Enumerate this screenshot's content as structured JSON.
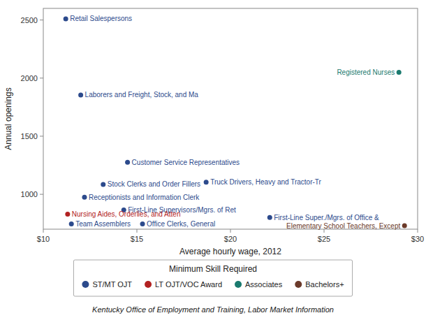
{
  "chart_data": {
    "type": "scatter",
    "xlabel": "Average hourly wage, 2012",
    "ylabel": "Annual openings",
    "caption": "Kentucky Office of Employment and Training, Labor Market Information",
    "xlim": [
      10,
      30
    ],
    "ylim": [
      700,
      2600
    ],
    "xticks": [
      {
        "value": 10,
        "label": "$10"
      },
      {
        "value": 15,
        "label": "$15"
      },
      {
        "value": 20,
        "label": "$20"
      },
      {
        "value": 25,
        "label": "$25"
      },
      {
        "value": 30,
        "label": "$30"
      }
    ],
    "yticks": [
      1000,
      1500,
      2000,
      2500
    ],
    "grid": false,
    "legend": "bottom",
    "legend_title": "Minimum Skill Required",
    "series": [
      {
        "name": "ST/MT OJT",
        "color": "#2C4A8C",
        "x": [
          11.2,
          12.0,
          14.5,
          13.2,
          18.7,
          12.2,
          14.3,
          11.5,
          15.3,
          22.1
        ],
        "values": [
          2510,
          1855,
          1275,
          1085,
          1105,
          975,
          865,
          745,
          745,
          800
        ],
        "labels": [
          "Retail Salespersons",
          "Laborers and Freight, Stock, and Ma",
          "Customer Service Representatives",
          "Stock Clerks and Order Fillers",
          "Truck Drivers, Heavy and Tractor-Tr",
          "Receptionists and Information Clerk",
          "First-Line Supervisors/Mgrs. of Ret",
          "Team Assemblers",
          "Office Clerks, General",
          "First-Line Super./Mgrs. of Office &"
        ]
      },
      {
        "name": "LT OJT/VOC Award",
        "color": "#B22222",
        "x": [
          11.3
        ],
        "values": [
          830
        ],
        "labels": [
          "Nursing Aides, Orderlies, and Atten"
        ]
      },
      {
        "name": "Associates",
        "color": "#1A7A6E",
        "x": [
          29.0
        ],
        "values": [
          2050
        ],
        "labels": [
          "Registered Nurses"
        ]
      },
      {
        "name": "Bachelors+",
        "color": "#6B3A2A",
        "x": [
          29.3
        ],
        "values": [
          730
        ],
        "labels": [
          "Elementary School Teachers, Except"
        ]
      }
    ]
  }
}
